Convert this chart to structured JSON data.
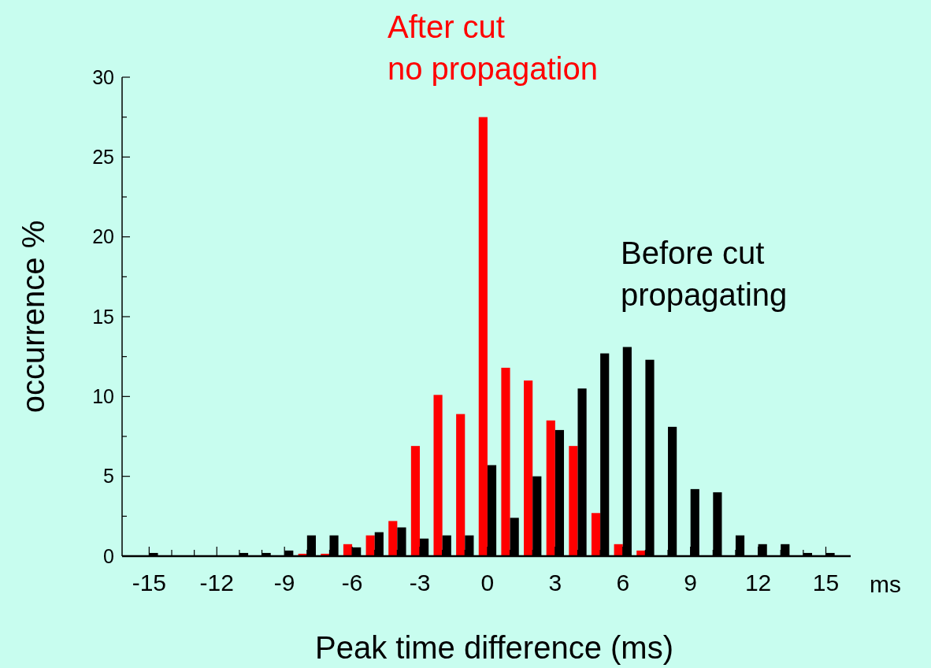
{
  "chart_data": {
    "type": "bar",
    "xlabel": "Peak time difference (ms)",
    "ylabel": "occurrence %",
    "annotations": [
      "ms"
    ],
    "x": [
      -15,
      -14,
      -13,
      -12,
      -11,
      -10,
      -9,
      -8,
      -7,
      -6,
      -5,
      -4,
      -3,
      -2,
      -1,
      0,
      1,
      2,
      3,
      4,
      5,
      6,
      7,
      8,
      9,
      10,
      11,
      12,
      13,
      14,
      15
    ],
    "series": [
      {
        "name": "After cut\nno propagation",
        "color": "#ff0000",
        "values": [
          0,
          0,
          0,
          0,
          0,
          0,
          0,
          0.15,
          0.15,
          0.75,
          1.3,
          2.2,
          6.9,
          10.1,
          8.9,
          27.5,
          11.8,
          11.0,
          8.5,
          6.9,
          2.7,
          0.75,
          0.35,
          0,
          0,
          0,
          0,
          0,
          0,
          0,
          0
        ]
      },
      {
        "name": "Before cut\npropagating",
        "color": "#000000",
        "values": [
          0.2,
          0,
          0,
          0,
          0.2,
          0.2,
          0.35,
          1.3,
          1.3,
          0.55,
          1.5,
          1.8,
          1.1,
          1.3,
          1.3,
          5.7,
          2.4,
          5.0,
          7.9,
          10.5,
          12.7,
          13.1,
          12.3,
          8.1,
          4.2,
          4.0,
          1.3,
          0.75,
          0.75,
          0.2,
          0.2
        ]
      }
    ],
    "xlim": [
      -16.2,
      16.1
    ],
    "xticks": [
      -15,
      {
        "value": -14,
        "label": null
      },
      {
        "value": -13,
        "label": null
      },
      -12,
      {
        "value": -11,
        "label": null
      },
      {
        "value": -10,
        "label": null
      },
      -9,
      {
        "value": -8,
        "label": null
      },
      {
        "value": -7,
        "label": null
      },
      -6,
      {
        "value": -5,
        "label": null
      },
      {
        "value": -4,
        "label": null
      },
      -3,
      {
        "value": -2,
        "label": null
      },
      {
        "value": -1,
        "label": null
      },
      0,
      {
        "value": 1,
        "label": null
      },
      {
        "value": 2,
        "label": null
      },
      3,
      {
        "value": 4,
        "label": null
      },
      {
        "value": 5,
        "label": null
      },
      6,
      {
        "value": 7,
        "label": null
      },
      {
        "value": 8,
        "label": null
      },
      9,
      {
        "value": 10,
        "label": null
      },
      {
        "value": 11,
        "label": null
      },
      12,
      {
        "value": 13,
        "label": null
      },
      {
        "value": 14,
        "label": null
      },
      15
    ],
    "ylim": [
      0,
      30
    ],
    "yticks": [
      0,
      {
        "value": 2.5,
        "label": null
      },
      5,
      {
        "value": 7.5,
        "label": null
      },
      10,
      {
        "value": 12.5,
        "label": null
      },
      15,
      {
        "value": 17.5,
        "label": null
      },
      20,
      {
        "value": 22.5,
        "label": null
      },
      25,
      {
        "value": 27.5,
        "label": null
      },
      30
    ],
    "grid": false,
    "legend": false
  }
}
